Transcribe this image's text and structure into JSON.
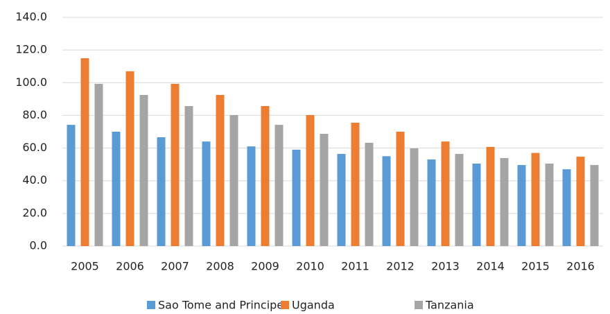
{
  "chart_data": {
    "type": "bar",
    "categories": [
      "2005",
      "2006",
      "2007",
      "2008",
      "2009",
      "2010",
      "2011",
      "2012",
      "2013",
      "2014",
      "2015",
      "2016"
    ],
    "series": [
      {
        "name": "Sao Tome and Principe",
        "color": "#5b9bd5",
        "values": [
          74.2,
          70.0,
          66.6,
          64.0,
          61.0,
          59.0,
          56.4,
          55.0,
          53.0,
          50.5,
          49.6,
          47.0
        ]
      },
      {
        "name": "Uganda",
        "color": "#ed7d31",
        "values": [
          115.0,
          107.0,
          99.3,
          92.5,
          85.7,
          80.2,
          75.5,
          70.0,
          64.0,
          60.7,
          57.0,
          54.7
        ]
      },
      {
        "name": "Tanzania",
        "color": "#a5a5a5",
        "values": [
          99.3,
          92.5,
          85.7,
          80.2,
          74.2,
          68.7,
          63.2,
          59.8,
          56.4,
          53.9,
          50.5,
          49.6
        ]
      }
    ],
    "ylim": [
      0,
      140
    ],
    "yticks": [
      {
        "value": 0,
        "label": "0.0"
      },
      {
        "value": 20,
        "label": "20.0"
      },
      {
        "value": 40,
        "label": "40.0"
      },
      {
        "value": 60,
        "label": "60.0"
      },
      {
        "value": 80,
        "label": "80.0"
      },
      {
        "value": 100,
        "label": "100.0"
      },
      {
        "value": 120,
        "label": "120.0"
      },
      {
        "value": 140,
        "label": "140.0"
      }
    ],
    "grid": true,
    "legend": "bottom"
  }
}
